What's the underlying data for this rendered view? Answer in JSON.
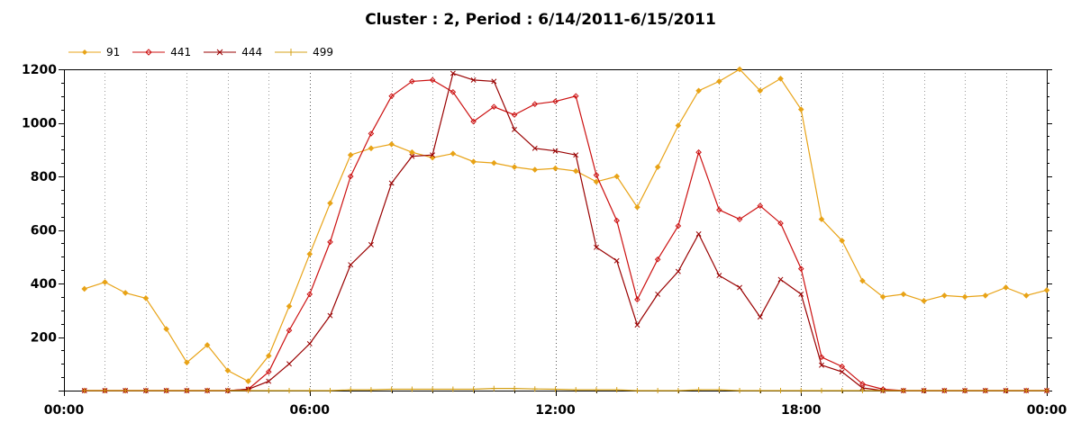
{
  "chart_data": {
    "type": "line",
    "title": "Cluster : 2, Period : 6/14/2011-6/15/2011",
    "xlabel": "",
    "ylabel": "",
    "x_tick_labels": [
      "00:00",
      "06:00",
      "12:00",
      "18:00",
      "00:00"
    ],
    "y_ticks": [
      200,
      400,
      600,
      800,
      1000,
      1200
    ],
    "ylim": [
      0,
      1200
    ],
    "xlim_hours": [
      0,
      24
    ],
    "grid": "vertical dotted",
    "legend_position": "top-left",
    "x_hours": [
      0.5,
      1.0,
      1.5,
      2.0,
      2.5,
      3.0,
      3.5,
      4.0,
      4.5,
      5.0,
      5.5,
      6.0,
      6.5,
      7.0,
      7.5,
      8.0,
      8.5,
      9.0,
      9.5,
      10.0,
      10.5,
      11.0,
      11.5,
      12.0,
      12.5,
      13.0,
      13.5,
      14.0,
      14.5,
      15.0,
      15.5,
      16.0,
      16.5,
      17.0,
      17.5,
      18.0,
      18.5,
      19.0,
      19.5,
      20.0,
      20.5,
      21.0,
      21.5,
      22.0,
      22.5,
      23.0,
      23.5,
      24.0
    ],
    "series": [
      {
        "name": "91",
        "color": "#e8a317",
        "marker": "diamond",
        "values": [
          380,
          405,
          365,
          345,
          230,
          105,
          170,
          75,
          35,
          130,
          315,
          510,
          700,
          880,
          905,
          920,
          890,
          870,
          885,
          855,
          850,
          835,
          825,
          830,
          820,
          780,
          800,
          685,
          835,
          990,
          1120,
          1155,
          1200,
          1120,
          1165,
          1050,
          640,
          560,
          410,
          350,
          360,
          335,
          355,
          350,
          355,
          385,
          355,
          375
        ]
      },
      {
        "name": "441",
        "color": "#cc1111",
        "marker": "diamond",
        "values": [
          0,
          0,
          0,
          0,
          0,
          0,
          0,
          0,
          5,
          70,
          225,
          360,
          555,
          800,
          960,
          1100,
          1155,
          1160,
          1115,
          1005,
          1060,
          1030,
          1070,
          1080,
          1100,
          805,
          635,
          340,
          490,
          615,
          890,
          675,
          640,
          690,
          625,
          455,
          125,
          90,
          25,
          5,
          0,
          0,
          0,
          0,
          0,
          0,
          0,
          0
        ]
      },
      {
        "name": "444",
        "color": "#990000",
        "marker": "x",
        "values": [
          0,
          0,
          0,
          0,
          0,
          0,
          0,
          0,
          5,
          35,
          100,
          175,
          280,
          470,
          545,
          775,
          875,
          880,
          1185,
          1160,
          1155,
          975,
          905,
          895,
          880,
          535,
          485,
          245,
          360,
          445,
          585,
          430,
          385,
          275,
          415,
          360,
          95,
          70,
          10,
          0,
          0,
          0,
          0,
          0,
          0,
          0,
          0,
          0
        ]
      },
      {
        "name": "499",
        "color": "#d4a017",
        "marker": "plus",
        "values": [
          0,
          0,
          0,
          0,
          0,
          0,
          0,
          0,
          0,
          0,
          0,
          0,
          0,
          3,
          3,
          5,
          5,
          5,
          5,
          5,
          8,
          8,
          6,
          5,
          3,
          3,
          3,
          0,
          0,
          0,
          3,
          3,
          0,
          0,
          0,
          0,
          0,
          0,
          0,
          0,
          0,
          0,
          0,
          0,
          0,
          0,
          0,
          0
        ]
      }
    ]
  }
}
